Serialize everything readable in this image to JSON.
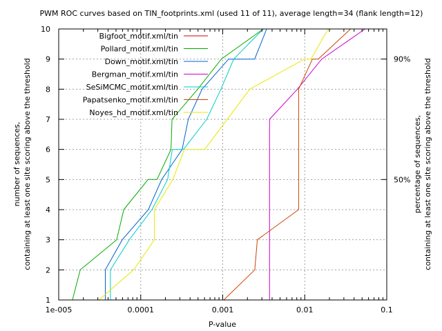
{
  "chart_data": {
    "type": "line",
    "title": "PWM ROC curves based on TIN_footprints.xml (used 11 of 11), average length=34 (flank length=12)",
    "xlabel": "P-value",
    "ylabel_left_line1": "number of sequences,",
    "ylabel_left_line2": "containing at least one site scoring above the threshold",
    "ylabel_right_line1": "percentage of sequences,",
    "ylabel_right_line2": "containing at least one site scoring above the threshold",
    "x_scale": "log",
    "xlim": [
      1e-05,
      0.1
    ],
    "ylim": [
      1,
      10
    ],
    "grid": true,
    "legend_position": "top-right",
    "x_ticks": [
      {
        "value": 1e-05,
        "label": "1e-005"
      },
      {
        "value": 0.0001,
        "label": "0.0001"
      },
      {
        "value": 0.001,
        "label": "0.001"
      },
      {
        "value": 0.01,
        "label": "0.01"
      },
      {
        "value": 0.1,
        "label": "0.1"
      }
    ],
    "y_ticks": [
      {
        "value": 1,
        "label": "1"
      },
      {
        "value": 2,
        "label": "2"
      },
      {
        "value": 3,
        "label": "3"
      },
      {
        "value": 4,
        "label": "4"
      },
      {
        "value": 5,
        "label": "5"
      },
      {
        "value": 6,
        "label": "6"
      },
      {
        "value": 7,
        "label": "7"
      },
      {
        "value": 8,
        "label": "8"
      },
      {
        "value": 9,
        "label": "9"
      },
      {
        "value": 10,
        "label": "10"
      }
    ],
    "y2_ticks": [
      {
        "value": 5,
        "label": "50%"
      },
      {
        "value": 9,
        "label": "90%"
      }
    ],
    "series": [
      {
        "name": "Bigfoot_motif.xml/tin",
        "color": "#cc0000",
        "points": []
      },
      {
        "name": "Pollard_motif.xml/tin",
        "color": "#00aa00",
        "points": [
          [
            1.47e-05,
            1
          ],
          [
            1.83e-05,
            2
          ],
          [
            5.09e-05,
            3
          ],
          [
            6.21e-05,
            4
          ],
          [
            0.000123,
            5
          ],
          [
            0.000158,
            5
          ],
          [
            0.000234,
            6
          ],
          [
            0.000241,
            7
          ],
          [
            0.000496,
            8
          ],
          [
            0.000961,
            9
          ],
          [
            0.00313,
            10
          ]
        ]
      },
      {
        "name": "Down_motif.xml/tin",
        "color": "#0060d0",
        "points": [
          [
            3.7e-05,
            1
          ],
          [
            3.7e-05,
            2
          ],
          [
            5.95e-05,
            3
          ],
          [
            0.000124,
            4
          ],
          [
            0.00018,
            5
          ],
          [
            0.00032,
            6
          ],
          [
            0.00038,
            7
          ],
          [
            0.00056,
            8
          ],
          [
            0.00118,
            9
          ],
          [
            0.00245,
            9
          ],
          [
            0.00343,
            10
          ]
        ]
      },
      {
        "name": "Bergman_motif.xml/tin",
        "color": "#cc00cc",
        "points": [
          [
            0.00372,
            1
          ],
          [
            0.00372,
            7
          ],
          [
            0.00813,
            8
          ],
          [
            0.0161,
            9
          ],
          [
            0.0544,
            10
          ]
        ]
      },
      {
        "name": "SeSiMCMC_motif.xml/tin",
        "color": "#00cccc",
        "points": [
          [
            4.27e-05,
            1
          ],
          [
            4.27e-05,
            2
          ],
          [
            7.25e-05,
            3
          ],
          [
            0.000137,
            4
          ],
          [
            0.000213,
            5
          ],
          [
            0.000243,
            6
          ],
          [
            0.000332,
            6
          ],
          [
            0.000638,
            7
          ],
          [
            0.00095,
            8
          ],
          [
            0.00136,
            9
          ],
          [
            0.00313,
            10
          ]
        ]
      },
      {
        "name": "Papatsenko_motif.xml/tin",
        "color": "#cc4400",
        "points": [
          [
            0.00103,
            1
          ],
          [
            0.00246,
            2
          ],
          [
            0.00264,
            3
          ],
          [
            0.00843,
            4
          ],
          [
            0.00843,
            8
          ],
          [
            0.0124,
            9
          ],
          [
            0.0146,
            9
          ],
          [
            0.0362,
            10
          ]
        ]
      },
      {
        "name": "Noyes_hd_motif.xml/tin",
        "color": "#e8e800",
        "points": [
          [
            3.1e-05,
            1
          ],
          [
            8.2e-05,
            2
          ],
          [
            0.000147,
            3
          ],
          [
            0.000147,
            4
          ],
          [
            0.000246,
            5
          ],
          [
            0.000341,
            6
          ],
          [
            0.000603,
            6
          ],
          [
            0.00214,
            8
          ],
          [
            0.00993,
            9
          ],
          [
            0.0119,
            9
          ],
          [
            0.0193,
            10
          ]
        ]
      }
    ]
  }
}
